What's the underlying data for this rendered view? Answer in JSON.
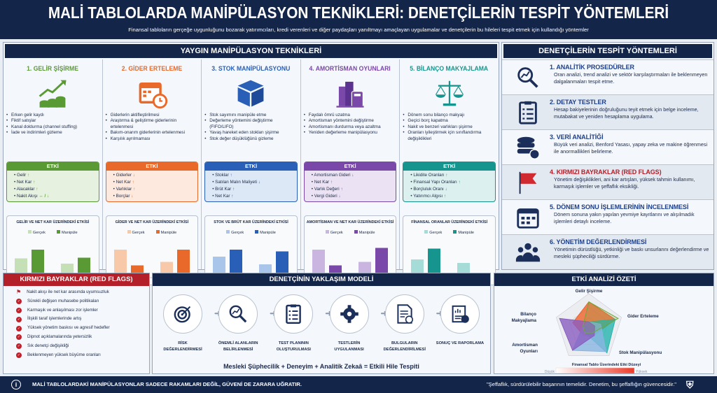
{
  "header": {
    "title": "MALİ TABLOLARDA MANİPÜLASYON TEKNİKLERİ: DENETÇİLERİN TESPİT YÖNTEMLERİ",
    "subtitle": "Finansal tabloların gerçeğe uygunluğunu bozarak yatırımcıları, kredi verenleri ve diğer paydaşları yanıltmayı amaçlayan uygulamalar ve denetçilerin bu hileleri tespit etmek için kullandığı yöntemler"
  },
  "techniques": {
    "title": "YAYGIN MANİPÜLASYON TEKNİKLERİ",
    "etki_label": "ETKİ",
    "legend": [
      "Gerçek",
      "Manipüle"
    ],
    "columns": [
      {
        "title": "1. GELİR ŞİŞİRME",
        "color": "#5a9a35",
        "light": "#e7f1df",
        "lightbar": "#c5dfb6",
        "icon": "growth-coins-icon",
        "bullets": [
          "Erken gelir kaydı",
          "Fiktif satışlar",
          "Kanal doldurma (channel stuffing)",
          "İade ve indirimleri gizleme"
        ],
        "effects": [
          [
            "Gelir",
            "↑"
          ],
          [
            "Net Kar",
            "↑"
          ],
          [
            "Alacaklar",
            "↑"
          ],
          [
            "Nakit Akışı",
            "↔ / ↓"
          ]
        ],
        "chart_title": "GELİR VE NET KAR ÜZERİNDEKİ ETKİSİ",
        "categories": [
          "Gelir",
          "Net Kar"
        ],
        "real": [
          55,
          40
        ],
        "manip": [
          80,
          57
        ]
      },
      {
        "title": "2. GİDER ERTELEME",
        "color": "#e8692a",
        "light": "#fde9dd",
        "lightbar": "#f8c9a8",
        "icon": "calendar-clock-icon",
        "bullets": [
          "Giderlerin aktifleştirilmesi",
          "Araştırma & geliştirme giderlerinin ertelenmesi",
          "Bakım-onarım giderlerinin ertelenmesi",
          "Karşılık ayrılmaması"
        ],
        "effects": [
          [
            "Giderler",
            "↓"
          ],
          [
            "Net Kar",
            "↑"
          ],
          [
            "Varlıklar",
            "↑"
          ],
          [
            "Borçlar",
            "↓"
          ]
        ],
        "chart_title": "GİDER VE NET KAR ÜZERİNDEKİ ETKİSİ",
        "categories": [
          "Gider",
          "Net Kar"
        ],
        "real": [
          80,
          45
        ],
        "manip": [
          35,
          80
        ]
      },
      {
        "title": "3. STOK MANİPÜLASYONU",
        "color": "#2a5fb8",
        "light": "#dde8f6",
        "lightbar": "#a9c5ea",
        "icon": "box-icon",
        "bullets": [
          "Stok sayımını manipüle etme",
          "Değerleme yöntemini değiştirme (FIFO/LIFO)",
          "Yavaş hareket eden stokları şişirme",
          "Stok değer düşüklüğünü gizleme"
        ],
        "effects": [
          [
            "Stoklar",
            "↑"
          ],
          [
            "Satılan Malın Maliyeti",
            "↓"
          ],
          [
            "Brüt Kar",
            "↑"
          ],
          [
            "Net Kar",
            "↑"
          ]
        ],
        "chart_title": "STOK VE BRÜT KAR ÜZERİNDEKİ ETKİSİ",
        "categories": [
          "Stok Değeri",
          "Brüt Kar"
        ],
        "real": [
          60,
          38
        ],
        "manip": [
          80,
          75
        ]
      },
      {
        "title": "4. AMORTİSMAN OYUNLARI",
        "color": "#7a48a8",
        "light": "#ebe3f3",
        "lightbar": "#c9b5df",
        "icon": "building-calculator-icon",
        "bullets": [
          "Faydalı ömrü uzatma",
          "Amortisman yöntemini değiştirme",
          "Amortismanı durdurma veya azaltma",
          "Yeniden değerleme manipülasyonu"
        ],
        "effects": [
          [
            "Amortisman Gideri",
            "↓"
          ],
          [
            "Net Kar",
            "↑"
          ],
          [
            "Varlık Değeri",
            "↑"
          ],
          [
            "Vergi Gideri",
            "↓"
          ]
        ],
        "chart_title": "AMORTİSMAN VE NET KAR ÜZERİNDEKİ ETKİSİ",
        "categories": [
          "Amortisman Gideri",
          "Net Kar"
        ],
        "real": [
          80,
          45
        ],
        "manip": [
          35,
          85
        ]
      },
      {
        "title": "5. BİLANÇO MAKYAJLAMA",
        "color": "#16948e",
        "light": "#dcf0ef",
        "lightbar": "#a6dcd8",
        "icon": "scales-icon",
        "bullets": [
          "Dönem sonu bilanço makyajı",
          "Geçici borç kapatma",
          "Nakit ve benzeri varlıkları şişirme",
          "Oranları iyileştirmek için sınıflandırma değişiklikleri"
        ],
        "effects": [
          [
            "Likidite Oranları",
            "↑"
          ],
          [
            "Finansal Yapı Oranları",
            "↑"
          ],
          [
            "Borçluluk Oranı",
            "↓"
          ],
          [
            "Yatırımcı Algısı",
            "↑"
          ]
        ],
        "chart_title": "FİNANSAL ORANLAR ÜZERİNDEKİ ETKİSİ",
        "categories": [
          "Cari Oran",
          "Borçluluk Oranı"
        ],
        "real": [
          52,
          42
        ],
        "manip": [
          83,
          10
        ]
      }
    ]
  },
  "detection": {
    "title": "DENETÇİLERİN TESPİT YÖNTEMLERİ",
    "items": [
      {
        "title": "1. ANALİTİK PROSEDÜRLER",
        "text": "Oran analizi, trend analizi ve sektör karşılaştırmaları ile beklenmeyen dalgalanmaları tespit etme.",
        "icon": "magnifier-chart-icon",
        "color": "#1e3f8a"
      },
      {
        "title": "2. DETAY TESTLER",
        "text": "Hesap bakiyelerinin doğruluğunu teyit etmek için belge inceleme, mutabakat ve yeniden hesaplama uygulama.",
        "icon": "checklist-icon",
        "color": "#1e3f8a"
      },
      {
        "title": "3. VERİ ANALİTİĞİ",
        "text": "Büyük veri analizi, Benford Yasası, yapay zeka ve makine öğrenmesi ile anormallikleri belirleme.",
        "icon": "database-icon",
        "color": "#1e3f8a"
      },
      {
        "title": "4. KIRMIZI BAYRAKLAR (RED FLAGS)",
        "text": "Yönetim değişiklikleri, ani kar artışları, yüksek tahmin kullanımı, karmaşık işlemler ve şeffaflık eksikliği.",
        "icon": "red-flag-icon",
        "color": "#b3202a"
      },
      {
        "title": "5. DÖNEM SONU İŞLEMLERİNİN İNCELENMESİ",
        "text": "Dönem sonuna yakın yapılan yevmiye kayıtlarını ve alışılmadık işlemleri detaylı inceleme.",
        "icon": "calendar-icon",
        "color": "#1e3f8a"
      },
      {
        "title": "6. YÖNETİM DEĞERLENDİRMESİ",
        "text": "Yönetimin dürüstlüğü, yetkinliği ve baskı unsurlarını değerlendirme ve mesleki şüpheciliği sürdürme.",
        "icon": "people-icon",
        "color": "#1e3f8a"
      }
    ]
  },
  "red_flags": {
    "title": "KIRMIZI BAYRAKLAR (RED FLAGS)",
    "items": [
      "Nakit akışı ile net kar arasında uyumsuzluk",
      "Sürekli değişen muhasebe politikaları",
      "Karmaşık ve anlaşılması zor işlemler",
      "İlişkili taraf işlemlerinde artış",
      "Yüksek yönetim baskısı ve agresif hedefler",
      "Dipnot açıklamalarında yetersizlik",
      "Sık denetçi değişikliği",
      "Beklenmeyen yüksek büyüme oranları"
    ]
  },
  "approach": {
    "title": "DENETÇİNİN YAKLAŞIM MODELİ",
    "steps": [
      {
        "label": "RİSK DEĞERLENDİRMESİ",
        "icon": "target-icon"
      },
      {
        "label": "ÖNEMLİ ALANLARIN BELİRLENMESİ",
        "icon": "magnifier-chart-icon"
      },
      {
        "label": "TEST PLANININ OLUŞTURULMASI",
        "icon": "clipboard-icon"
      },
      {
        "label": "TESTLERİN UYGULANMASI",
        "icon": "gear-icon"
      },
      {
        "label": "BULGULARIN DEĞERLENDİRİLMESİ",
        "icon": "document-check-icon"
      },
      {
        "label": "SONUÇ VE RAPORLAMA",
        "icon": "report-check-icon"
      }
    ],
    "formula": "Mesleki Şüphecilik + Deneyim + Analitik Zekaâ = Etkili Hile Tespiti"
  },
  "chart_data": {
    "type": "radar",
    "title": "ETKİ ANALİZİ ÖZETİ",
    "axes": [
      "Gelir Şişirme",
      "Gider Erteleme",
      "Stok Manipülasyonu",
      "Amortisman Oyunları",
      "Bilanço Makyajlama"
    ],
    "series": [
      {
        "color": "#f0622a",
        "values": [
          0.85,
          0.9,
          0.3,
          0.3,
          0.55
        ]
      },
      {
        "color": "#25b4ae",
        "values": [
          0.2,
          0.9,
          1.0,
          0.2,
          0.2
        ]
      },
      {
        "color": "#8ab4e2",
        "values": [
          0.2,
          0.4,
          0.95,
          0.9,
          0.2
        ]
      },
      {
        "color": "#8a5cc0",
        "values": [
          0.2,
          0.2,
          0.3,
          0.9,
          1.0
        ]
      },
      {
        "color": "#6aaa3a",
        "values": [
          0.85,
          1.0,
          0.2,
          0.2,
          0.2
        ]
      }
    ],
    "scale_label": "Finansal Tablo Üzerindeki Etki Düzeyi",
    "scale_low": "Düşük",
    "scale_high": "Yüksek"
  },
  "footer": {
    "left": "MALİ TABLOLARDAKİ MANİPÜLASYONLAR SADECE RAKAMLARI DEĞİL, GÜVENİ DE ZARARA UĞRATIR.",
    "right": "\"Şeffaflık, sürdürülebilir başarının temelidir. Denetim, bu şeffaflığın güvencesidir.\""
  }
}
